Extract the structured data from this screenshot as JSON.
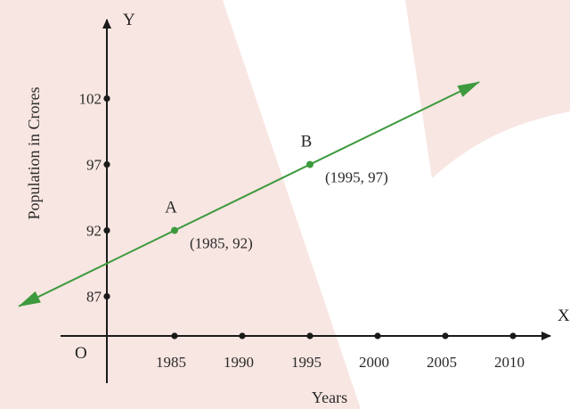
{
  "chart_data": {
    "type": "line",
    "title": "",
    "xlabel": "Years",
    "ylabel": "Population in Crores",
    "axis_x_letter": "X",
    "axis_y_letter": "Y",
    "origin_label": "O",
    "x_ticks": [
      1985,
      1990,
      1995,
      2000,
      2005,
      2010
    ],
    "y_ticks": [
      87,
      92,
      97,
      102
    ],
    "points": [
      {
        "name": "A",
        "x": 1985,
        "y": 92,
        "label": "(1985, 92)"
      },
      {
        "name": "B",
        "x": 1995,
        "y": 97,
        "label": "(1995, 97)"
      }
    ],
    "line": {
      "slope": 0.5,
      "through": [
        1985,
        92
      ],
      "extends_both_ways": true
    },
    "grid": false
  },
  "colors": {
    "line": "#3e9a3e",
    "axis": "#1a1a1a",
    "watermark": "#f8e6e2"
  }
}
